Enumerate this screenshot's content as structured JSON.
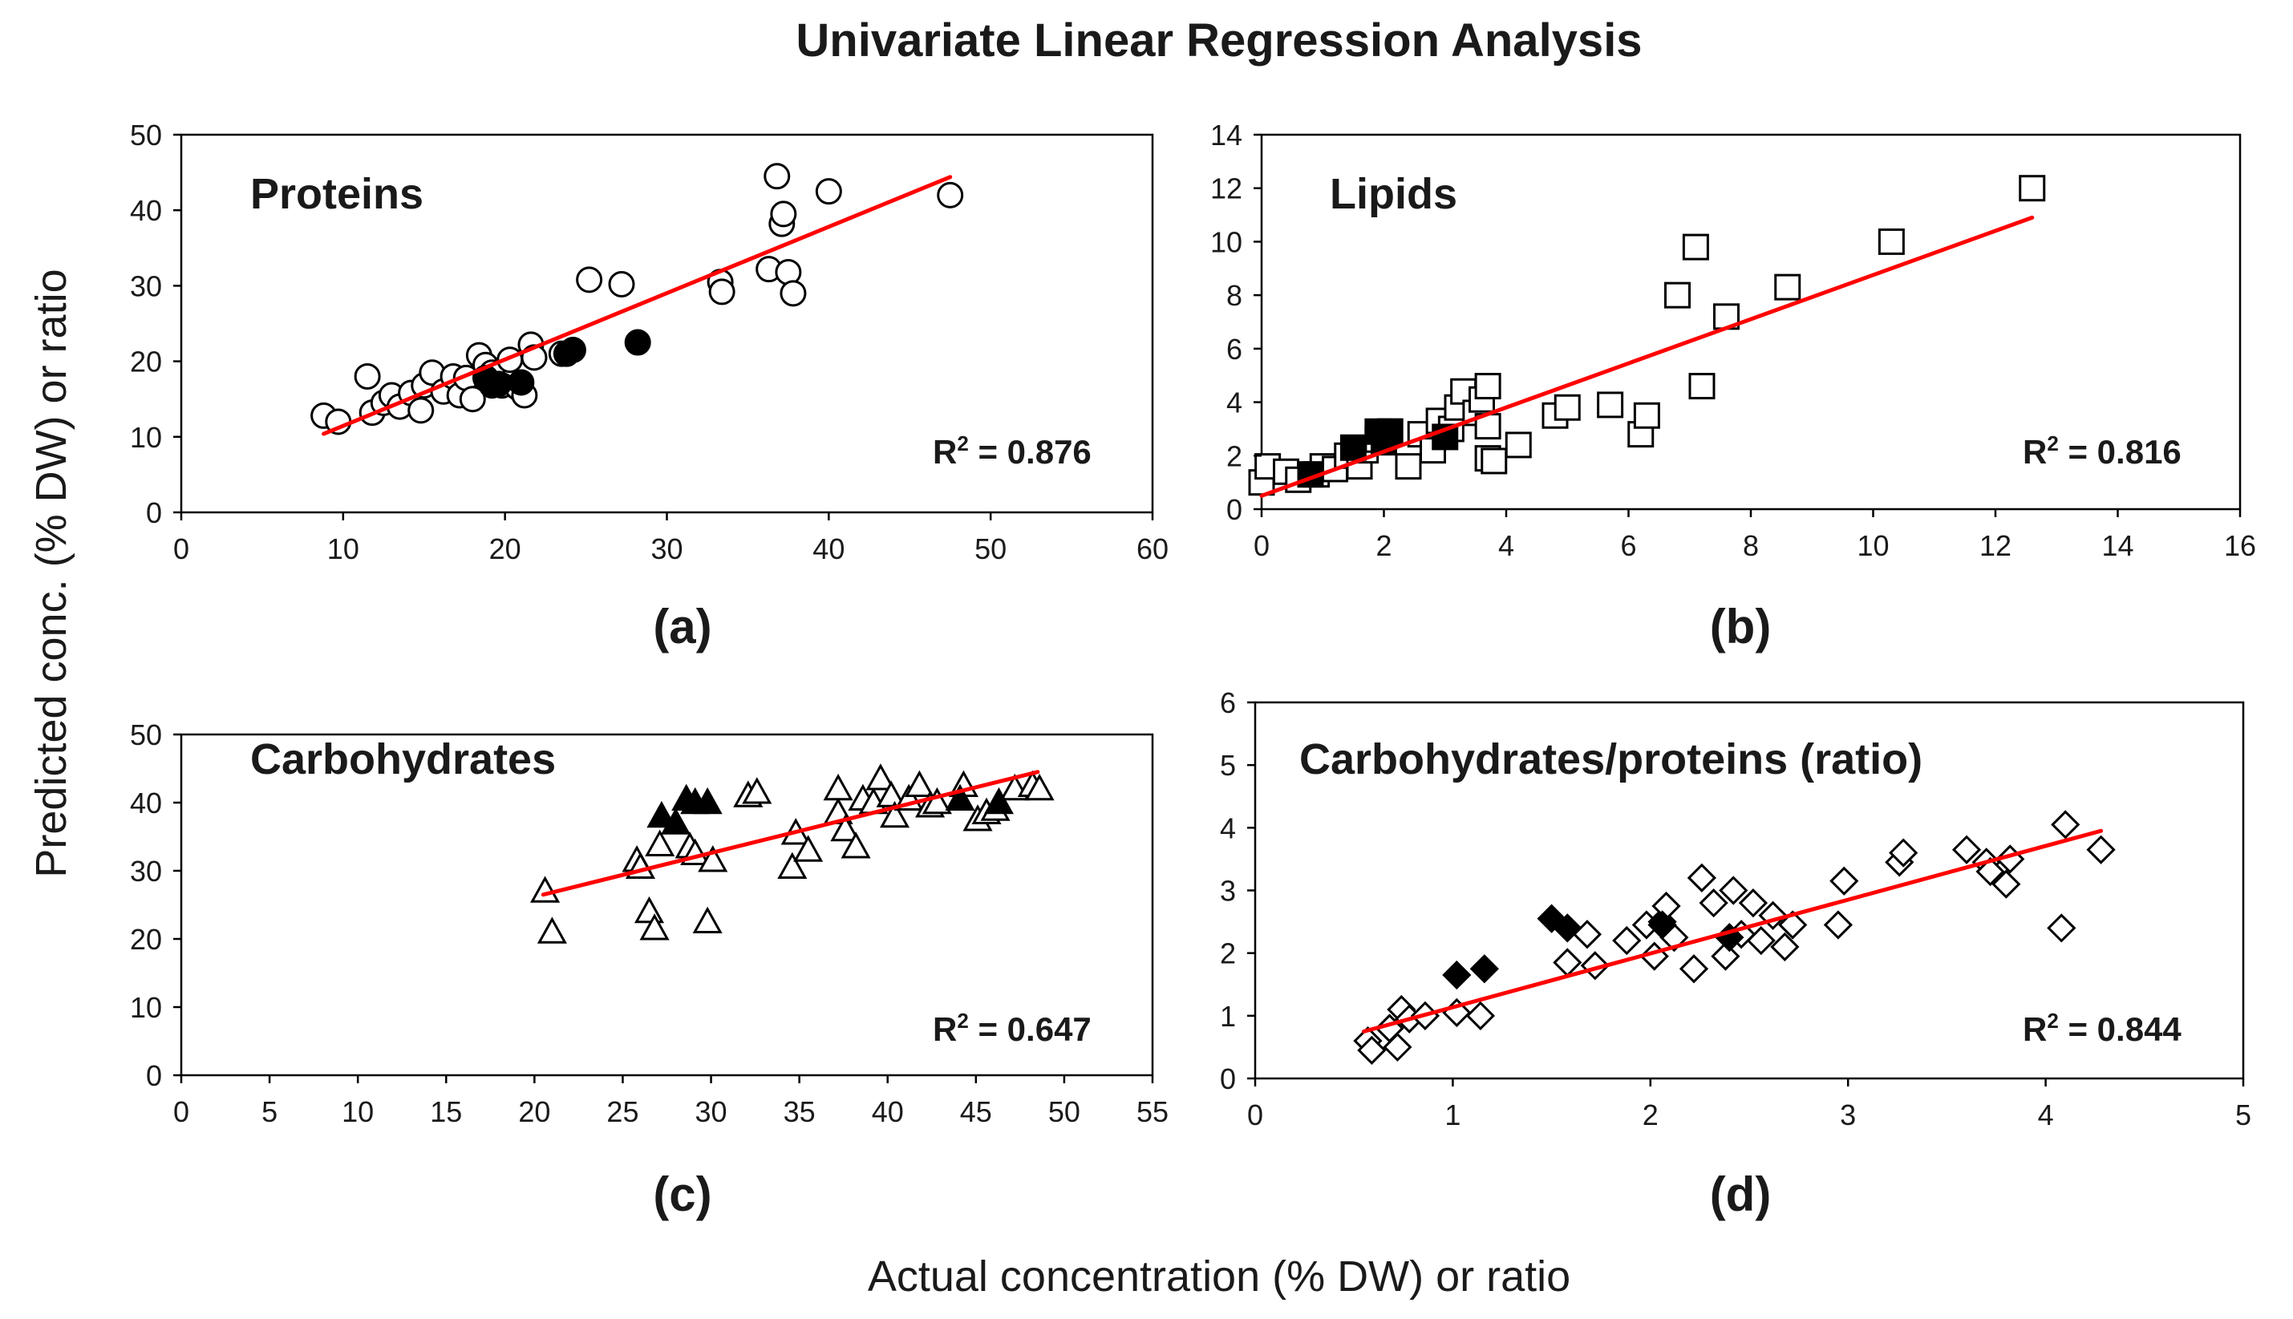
{
  "figure": {
    "title": "Univariate Linear Regression Analysis",
    "ylabel": "Predicted conc. (% DW) or ratio",
    "xlabel": "Actual concentration (% DW) or ratio",
    "colors": {
      "fit_line": "#ff0000",
      "marker_stroke": "#000000",
      "open_fill": "#ffffff",
      "solid_fill": "#000000",
      "axes": "#000000"
    }
  },
  "chart_data": [
    {
      "type": "scatter",
      "panel_label": "(a)",
      "name": "Proteins",
      "marker": "circle",
      "r2_text": " = 0.876",
      "xlim": [
        0,
        60
      ],
      "ylim": [
        0,
        50
      ],
      "xticks": [
        0,
        10,
        20,
        30,
        40,
        50,
        60
      ],
      "yticks": [
        0,
        10,
        20,
        30,
        40,
        50
      ],
      "fit_line": [
        [
          8.8,
          10.4
        ],
        [
          47.5,
          44.4
        ]
      ],
      "open_points": [
        [
          8.8,
          12.8
        ],
        [
          9.7,
          12.0
        ],
        [
          11.5,
          18.0
        ],
        [
          11.8,
          13.2
        ],
        [
          12.5,
          14.5
        ],
        [
          13.0,
          15.5
        ],
        [
          13.5,
          14.0
        ],
        [
          14.2,
          15.8
        ],
        [
          14.8,
          13.5
        ],
        [
          15.0,
          16.8
        ],
        [
          15.5,
          18.5
        ],
        [
          16.2,
          16.0
        ],
        [
          16.8,
          18.0
        ],
        [
          17.2,
          15.5
        ],
        [
          17.6,
          17.8
        ],
        [
          18.0,
          15.0
        ],
        [
          18.4,
          20.8
        ],
        [
          18.8,
          19.5
        ],
        [
          19.2,
          18.5
        ],
        [
          19.8,
          16.8
        ],
        [
          20.3,
          20.2
        ],
        [
          20.8,
          16.5
        ],
        [
          21.2,
          15.5
        ],
        [
          21.6,
          22.2
        ],
        [
          21.8,
          20.5
        ],
        [
          23.5,
          21.0
        ],
        [
          25.2,
          30.8
        ],
        [
          27.2,
          30.2
        ],
        [
          33.3,
          30.5
        ],
        [
          33.4,
          29.2
        ],
        [
          36.3,
          32.2
        ],
        [
          36.8,
          44.5
        ],
        [
          37.1,
          38.2
        ],
        [
          37.2,
          39.5
        ],
        [
          37.5,
          31.8
        ],
        [
          37.8,
          29.0
        ],
        [
          40.0,
          42.5
        ],
        [
          47.5,
          42.0
        ]
      ],
      "solid_points": [
        [
          18.8,
          17.8
        ],
        [
          19.2,
          16.8
        ],
        [
          19.6,
          17.0
        ],
        [
          21.0,
          17.2
        ],
        [
          23.8,
          21.0
        ],
        [
          24.2,
          21.5
        ],
        [
          28.2,
          22.5
        ]
      ]
    },
    {
      "type": "scatter",
      "panel_label": "(b)",
      "name": "Lipids",
      "marker": "square",
      "r2_text": " = 0.816",
      "xlim": [
        0,
        16
      ],
      "ylim": [
        0,
        14
      ],
      "xticks": [
        0,
        2,
        4,
        6,
        8,
        10,
        12,
        14,
        16
      ],
      "yticks": [
        0,
        2,
        4,
        6,
        8,
        10,
        12,
        14
      ],
      "fit_line": [
        [
          0.0,
          0.5
        ],
        [
          12.6,
          10.9
        ]
      ],
      "open_points": [
        [
          0.0,
          1.0
        ],
        [
          0.1,
          1.6
        ],
        [
          0.4,
          1.4
        ],
        [
          0.6,
          1.1
        ],
        [
          0.9,
          1.3
        ],
        [
          1.0,
          1.6
        ],
        [
          1.2,
          1.5
        ],
        [
          1.4,
          2.0
        ],
        [
          1.6,
          1.6
        ],
        [
          1.7,
          2.2
        ],
        [
          1.9,
          2.6
        ],
        [
          2.1,
          2.9
        ],
        [
          2.4,
          1.6
        ],
        [
          2.6,
          2.8
        ],
        [
          2.8,
          2.2
        ],
        [
          2.9,
          3.3
        ],
        [
          3.1,
          3.0
        ],
        [
          3.2,
          3.8
        ],
        [
          3.3,
          4.4
        ],
        [
          3.5,
          3.6
        ],
        [
          3.6,
          4.1
        ],
        [
          3.7,
          4.6
        ],
        [
          3.7,
          3.1
        ],
        [
          3.7,
          1.9
        ],
        [
          3.8,
          1.8
        ],
        [
          4.2,
          2.4
        ],
        [
          4.8,
          3.5
        ],
        [
          5.0,
          3.8
        ],
        [
          5.7,
          3.9
        ],
        [
          6.2,
          2.8
        ],
        [
          6.3,
          3.5
        ],
        [
          6.8,
          8.0
        ],
        [
          7.1,
          9.8
        ],
        [
          7.2,
          4.6
        ],
        [
          7.6,
          7.2
        ],
        [
          8.6,
          8.3
        ],
        [
          10.3,
          10.0
        ],
        [
          12.6,
          12.0
        ]
      ],
      "solid_points": [
        [
          0.8,
          1.3
        ],
        [
          1.5,
          2.3
        ],
        [
          1.9,
          2.9
        ],
        [
          2.0,
          2.5
        ],
        [
          2.1,
          2.9
        ],
        [
          3.0,
          2.7
        ]
      ]
    },
    {
      "type": "scatter",
      "panel_label": "(c)",
      "name": "Carbohydrates",
      "marker": "triangle",
      "r2_text": " = 0.647",
      "xlim": [
        0,
        55
      ],
      "ylim": [
        0,
        50
      ],
      "xticks": [
        0,
        5,
        10,
        15,
        20,
        25,
        30,
        35,
        40,
        45,
        50,
        55
      ],
      "yticks": [
        0,
        10,
        20,
        30,
        40,
        50
      ],
      "fit_line": [
        [
          20.5,
          26.5
        ],
        [
          48.5,
          44.5
        ]
      ],
      "open_points": [
        [
          20.6,
          27.0
        ],
        [
          21.0,
          21.0
        ],
        [
          25.8,
          31.5
        ],
        [
          26.0,
          30.5
        ],
        [
          26.5,
          24.0
        ],
        [
          26.8,
          21.5
        ],
        [
          27.1,
          33.8
        ],
        [
          28.8,
          33.5
        ],
        [
          29.1,
          32.5
        ],
        [
          29.8,
          22.5
        ],
        [
          30.1,
          31.5
        ],
        [
          32.1,
          41.0
        ],
        [
          32.6,
          41.5
        ],
        [
          34.6,
          30.5
        ],
        [
          34.8,
          35.5
        ],
        [
          35.5,
          33.0
        ],
        [
          37.2,
          38.5
        ],
        [
          37.2,
          42.0
        ],
        [
          37.6,
          36.0
        ],
        [
          38.2,
          33.5
        ],
        [
          38.6,
          40.5
        ],
        [
          39.2,
          40.0
        ],
        [
          39.6,
          43.5
        ],
        [
          40.2,
          41.0
        ],
        [
          40.4,
          38.0
        ],
        [
          41.2,
          40.5
        ],
        [
          41.8,
          42.5
        ],
        [
          42.4,
          39.5
        ],
        [
          42.8,
          40.0
        ],
        [
          44.3,
          42.5
        ],
        [
          45.1,
          37.5
        ],
        [
          45.6,
          38.5
        ],
        [
          46.1,
          39.0
        ],
        [
          47.2,
          42.0
        ],
        [
          48.2,
          42.5
        ],
        [
          48.6,
          42.0
        ]
      ],
      "solid_points": [
        [
          27.2,
          38.0
        ],
        [
          28.0,
          37.0
        ],
        [
          28.6,
          40.5
        ],
        [
          29.1,
          40.0
        ],
        [
          29.8,
          40.0
        ],
        [
          44.1,
          40.5
        ],
        [
          46.3,
          40.0
        ]
      ]
    },
    {
      "type": "scatter",
      "panel_label": "(d)",
      "name": "Carbohydrates/proteins (ratio)",
      "marker": "diamond",
      "r2_text": " = 0.844",
      "xlim": [
        0,
        5
      ],
      "ylim": [
        0,
        6
      ],
      "xticks": [
        0,
        1,
        2,
        3,
        4,
        5
      ],
      "yticks": [
        0,
        1,
        2,
        3,
        4,
        5,
        6
      ],
      "fit_line": [
        [
          0.55,
          0.75
        ],
        [
          4.28,
          3.95
        ]
      ],
      "open_points": [
        [
          0.57,
          0.6
        ],
        [
          0.59,
          0.45
        ],
        [
          0.68,
          0.8
        ],
        [
          0.72,
          0.5
        ],
        [
          0.74,
          1.1
        ],
        [
          0.78,
          0.95
        ],
        [
          0.86,
          1.0
        ],
        [
          1.02,
          1.05
        ],
        [
          1.14,
          1.0
        ],
        [
          1.58,
          1.85
        ],
        [
          1.68,
          2.3
        ],
        [
          1.72,
          1.8
        ],
        [
          1.88,
          2.2
        ],
        [
          1.98,
          2.45
        ],
        [
          2.02,
          1.95
        ],
        [
          2.06,
          2.5
        ],
        [
          2.08,
          2.75
        ],
        [
          2.12,
          2.25
        ],
        [
          2.22,
          1.75
        ],
        [
          2.26,
          3.2
        ],
        [
          2.32,
          2.8
        ],
        [
          2.38,
          1.95
        ],
        [
          2.42,
          3.0
        ],
        [
          2.46,
          2.3
        ],
        [
          2.52,
          2.8
        ],
        [
          2.56,
          2.2
        ],
        [
          2.62,
          2.6
        ],
        [
          2.68,
          2.1
        ],
        [
          2.72,
          2.45
        ],
        [
          2.95,
          2.45
        ],
        [
          2.98,
          3.15
        ],
        [
          3.26,
          3.45
        ],
        [
          3.28,
          3.6
        ],
        [
          3.6,
          3.65
        ],
        [
          3.7,
          3.45
        ],
        [
          3.72,
          3.3
        ],
        [
          3.8,
          3.1
        ],
        [
          3.82,
          3.5
        ],
        [
          4.08,
          2.4
        ],
        [
          4.1,
          4.05
        ],
        [
          4.28,
          3.65
        ]
      ],
      "solid_points": [
        [
          1.02,
          1.65
        ],
        [
          1.16,
          1.75
        ],
        [
          1.5,
          2.55
        ],
        [
          1.58,
          2.4
        ],
        [
          2.06,
          2.45
        ],
        [
          2.4,
          2.25
        ]
      ]
    }
  ]
}
